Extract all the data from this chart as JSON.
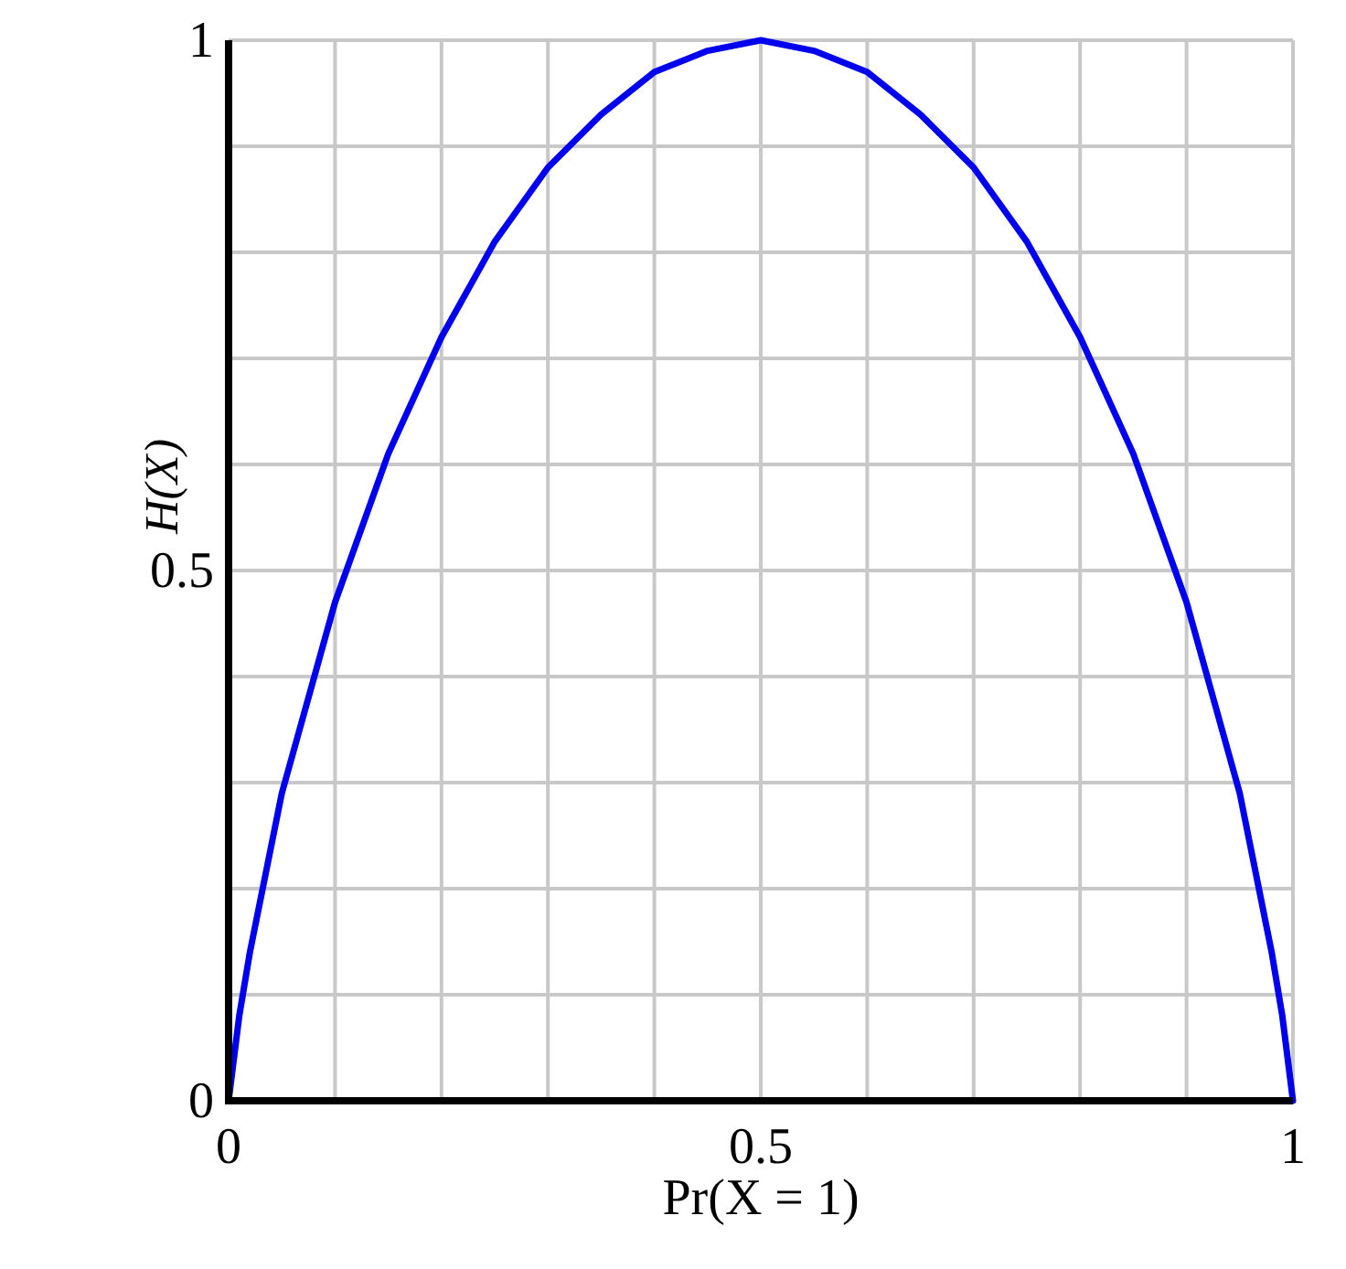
{
  "chart_data": {
    "type": "line",
    "xlabel": "Pr(X = 1)",
    "ylabel": "H(X)",
    "x": [
      0,
      0.01,
      0.02,
      0.05,
      0.1,
      0.15,
      0.2,
      0.25,
      0.3,
      0.35,
      0.4,
      0.45,
      0.5,
      0.55,
      0.6,
      0.65,
      0.7,
      0.75,
      0.8,
      0.85,
      0.9,
      0.95,
      0.98,
      0.99,
      1
    ],
    "series": [
      {
        "color": "#0000ee",
        "values": [
          0,
          0.08,
          0.14,
          0.29,
          0.47,
          0.61,
          0.72,
          0.81,
          0.88,
          0.93,
          0.97,
          0.99,
          1,
          0.99,
          0.97,
          0.93,
          0.88,
          0.81,
          0.72,
          0.61,
          0.47,
          0.29,
          0.14,
          0.08,
          0
        ]
      }
    ],
    "xlim": [
      0,
      1
    ],
    "ylim": [
      0,
      1
    ],
    "xticks": [
      0,
      {
        "value": 0.1,
        "label": null
      },
      {
        "value": 0.2,
        "label": null
      },
      {
        "value": 0.3,
        "label": null
      },
      {
        "value": 0.4,
        "label": null
      },
      0.5,
      {
        "value": 0.6,
        "label": null
      },
      {
        "value": 0.7,
        "label": null
      },
      {
        "value": 0.8,
        "label": null
      },
      {
        "value": 0.9,
        "label": null
      },
      1
    ],
    "yticks": [
      0,
      {
        "value": 0.1,
        "label": null
      },
      {
        "value": 0.2,
        "label": null
      },
      {
        "value": 0.3,
        "label": null
      },
      {
        "value": 0.4,
        "label": null
      },
      0.5,
      {
        "value": 0.6,
        "label": null
      },
      {
        "value": 0.7,
        "label": null
      },
      {
        "value": 0.8,
        "label": null
      },
      {
        "value": 0.9,
        "label": null
      },
      1
    ],
    "grid": true,
    "line_style": "solid",
    "marker": "none"
  }
}
